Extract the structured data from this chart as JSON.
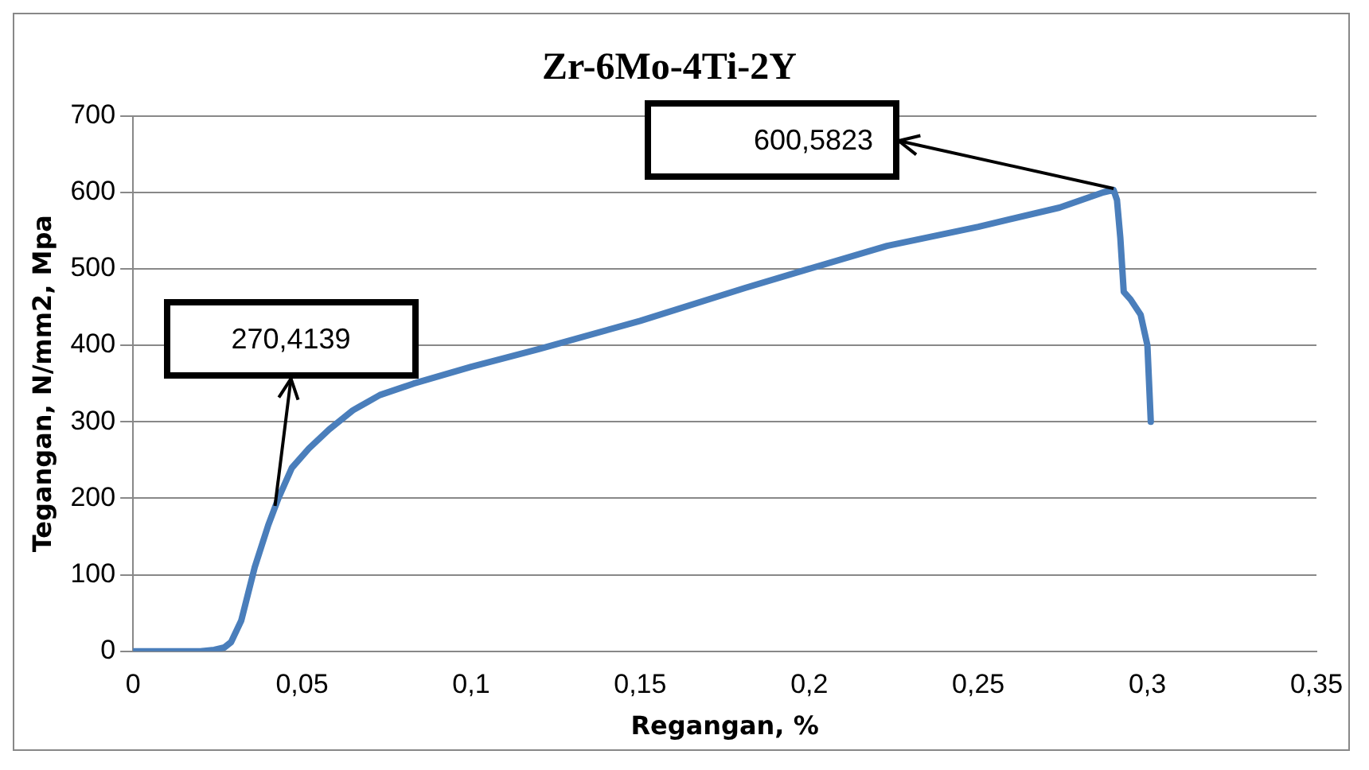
{
  "chart_data": {
    "type": "line",
    "title": "Zr-6Mo-4Ti-2Y",
    "xlabel": "Regangan, %",
    "ylabel": "Tegangan, N/mm2, Mpa",
    "x": [
      0,
      0.01,
      0.02,
      0.024,
      0.027,
      0.029,
      0.032,
      0.036,
      0.04,
      0.043,
      0.047,
      0.052,
      0.058,
      0.065,
      0.073,
      0.083,
      0.1,
      0.12,
      0.15,
      0.181,
      0.2,
      0.223,
      0.25,
      0.274,
      0.287,
      0.29,
      0.291,
      0.292,
      0.293,
      0.295,
      0.298,
      0.3,
      0.301
    ],
    "series": [
      {
        "color": "#4a7ebb",
        "values": [
          0,
          0,
          0,
          2,
          5,
          12,
          40,
          110,
          165,
          200,
          240,
          265,
          290,
          315,
          335,
          350,
          372,
          395,
          432,
          475,
          500,
          530,
          555,
          580,
          600,
          603,
          590,
          540,
          470,
          460,
          440,
          400,
          300
        ]
      }
    ],
    "xlim": [
      0,
      0.35
    ],
    "xticks": [
      0,
      {
        "value": 0.05,
        "label": "0,05"
      },
      {
        "value": 0.1,
        "label": "0,1"
      },
      {
        "value": 0.15,
        "label": "0,15"
      },
      {
        "value": 0.2,
        "label": "0,2"
      },
      {
        "value": 0.25,
        "label": "0,25"
      },
      {
        "value": 0.3,
        "label": "0,3"
      },
      {
        "value": 0.35,
        "label": "0,35"
      }
    ],
    "ylim": [
      0,
      700
    ],
    "yticks": [
      0,
      100,
      200,
      300,
      400,
      500,
      600,
      700
    ],
    "grid": "y",
    "legend": false,
    "marker": "none",
    "line_style": "solid",
    "annotations": [
      {
        "text": "270,4139",
        "x": 0.042,
        "y": 190
      },
      {
        "text": "600,5823",
        "x": 0.29,
        "y": 605
      }
    ]
  }
}
